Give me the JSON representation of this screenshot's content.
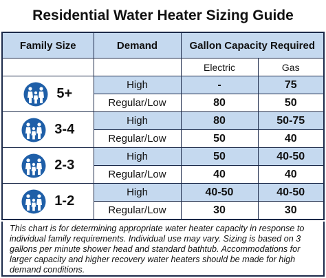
{
  "title": "Residential Water Heater Sizing Guide",
  "table": {
    "headers": [
      "Family Size",
      "Demand",
      "Gallon Capacity Required"
    ],
    "subheaders": [
      "Electric",
      "Gas"
    ],
    "groups": [
      {
        "family": "5+",
        "rows": [
          {
            "demand": "High",
            "electric": "-",
            "gas": "75"
          },
          {
            "demand": "Regular/Low",
            "electric": "80",
            "gas": "50"
          }
        ]
      },
      {
        "family": "3-4",
        "rows": [
          {
            "demand": "High",
            "electric": "80",
            "gas": "50-75"
          },
          {
            "demand": "Regular/Low",
            "electric": "50",
            "gas": "40"
          }
        ]
      },
      {
        "family": "2-3",
        "rows": [
          {
            "demand": "High",
            "electric": "50",
            "gas": "40-50"
          },
          {
            "demand": "Regular/Low",
            "electric": "40",
            "gas": "40"
          }
        ]
      },
      {
        "family": "1-2",
        "rows": [
          {
            "demand": "High",
            "electric": "40-50",
            "gas": "40-50"
          },
          {
            "demand": "Regular/Low",
            "electric": "30",
            "gas": "30"
          }
        ]
      }
    ]
  },
  "note": "This chart is for determining appropriate water heater capacity in response to individual family requirements. Individual use may vary. Sizing is based on 3 gallons per minute shower head and standard bathtub. Accommodations for larger capacity and higher recovery water heaters should be made for high demand conditions."
}
